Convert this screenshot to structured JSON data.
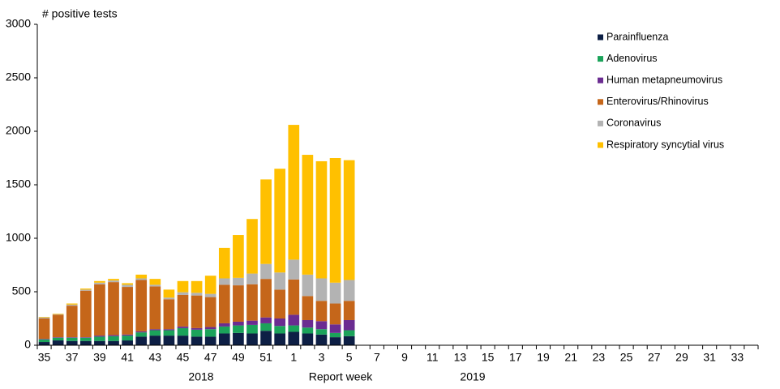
{
  "chart_data": {
    "type": "stacked_bar",
    "ylabel": "# positive tests",
    "xlabel": "Report  week",
    "year_labels": [
      "2018",
      "2019"
    ],
    "categories": [
      "35",
      null,
      "37",
      null,
      "39",
      null,
      "41",
      null,
      "43",
      null,
      "45",
      null,
      "47",
      null,
      "49",
      null,
      "51",
      null,
      "1",
      null,
      "3",
      null,
      "5",
      null,
      "7",
      null,
      "9",
      null,
      "11",
      null,
      "13",
      null,
      "15",
      null,
      "17",
      null,
      "19",
      null,
      "21",
      null,
      "23",
      null,
      "25",
      null,
      "27",
      null,
      "29",
      null,
      "31",
      null,
      "33",
      null
    ],
    "ylim": [
      0,
      3000
    ],
    "yticks": [
      0,
      500,
      1000,
      1500,
      2000,
      2500,
      3000
    ],
    "grid": false,
    "legend": "upper right",
    "series": [
      {
        "name": "Parainfluenza",
        "color": "#0d1f45",
        "values": [
          30,
          45,
          40,
          40,
          40,
          40,
          45,
          80,
          90,
          90,
          90,
          80,
          80,
          110,
          115,
          110,
          135,
          110,
          125,
          110,
          100,
          75,
          85,
          null,
          null,
          null,
          null,
          null,
          null,
          null,
          null,
          null,
          null,
          null,
          null,
          null,
          null,
          null,
          null,
          null,
          null,
          null,
          null,
          null,
          null,
          null,
          null,
          null,
          null,
          null,
          null,
          null
        ]
      },
      {
        "name": "Adenovirus",
        "color": "#1ba35a",
        "values": [
          25,
          25,
          30,
          30,
          40,
          45,
          45,
          40,
          50,
          50,
          70,
          65,
          70,
          65,
          70,
          80,
          70,
          70,
          60,
          55,
          50,
          40,
          55,
          null,
          null,
          null,
          null,
          null,
          null,
          null,
          null,
          null,
          null,
          null,
          null,
          null,
          null,
          null,
          null,
          null,
          null,
          null,
          null,
          null,
          null,
          null,
          null,
          null,
          null,
          null,
          null,
          null
        ]
      },
      {
        "name": "Human metapneumovirus",
        "color": "#6b2c91",
        "values": [
          5,
          5,
          5,
          5,
          10,
          10,
          10,
          10,
          10,
          10,
          15,
          15,
          20,
          30,
          35,
          40,
          55,
          70,
          100,
          70,
          75,
          80,
          95,
          null,
          null,
          null,
          null,
          null,
          null,
          null,
          null,
          null,
          null,
          null,
          null,
          null,
          null,
          null,
          null,
          null,
          null,
          null,
          null,
          null,
          null,
          null,
          null,
          null,
          null,
          null,
          null,
          null
        ]
      },
      {
        "name": "Enterovirus/Rhinovirus",
        "color": "#c5661a",
        "values": [
          190,
          210,
          295,
          435,
          480,
          495,
          445,
          480,
          400,
          280,
          295,
          305,
          280,
          360,
          340,
          340,
          360,
          270,
          330,
          225,
          190,
          195,
          180,
          null,
          null,
          null,
          null,
          null,
          null,
          null,
          null,
          null,
          null,
          null,
          null,
          null,
          null,
          null,
          null,
          null,
          null,
          null,
          null,
          null,
          null,
          null,
          null,
          null,
          null,
          null,
          null,
          null
        ]
      },
      {
        "name": "Coronavirus",
        "color": "#b3b3b3",
        "values": [
          10,
          5,
          10,
          10,
          15,
          15,
          20,
          15,
          15,
          15,
          25,
          25,
          30,
          60,
          70,
          100,
          140,
          160,
          185,
          200,
          210,
          195,
          195,
          null,
          null,
          null,
          null,
          null,
          null,
          null,
          null,
          null,
          null,
          null,
          null,
          null,
          null,
          null,
          null,
          null,
          null,
          null,
          null,
          null,
          null,
          null,
          null,
          null,
          null,
          null,
          null,
          null
        ]
      },
      {
        "name": "Respiratory syncytial virus",
        "color": "#ffc000",
        "values": [
          5,
          5,
          10,
          10,
          15,
          15,
          15,
          35,
          55,
          75,
          105,
          110,
          170,
          285,
          400,
          510,
          790,
          970,
          1260,
          1120,
          1095,
          1165,
          1120,
          null,
          null,
          null,
          null,
          null,
          null,
          null,
          null,
          null,
          null,
          null,
          null,
          null,
          null,
          null,
          null,
          null,
          null,
          null,
          null,
          null,
          null,
          null,
          null,
          null,
          null,
          null,
          null,
          null
        ]
      }
    ]
  }
}
